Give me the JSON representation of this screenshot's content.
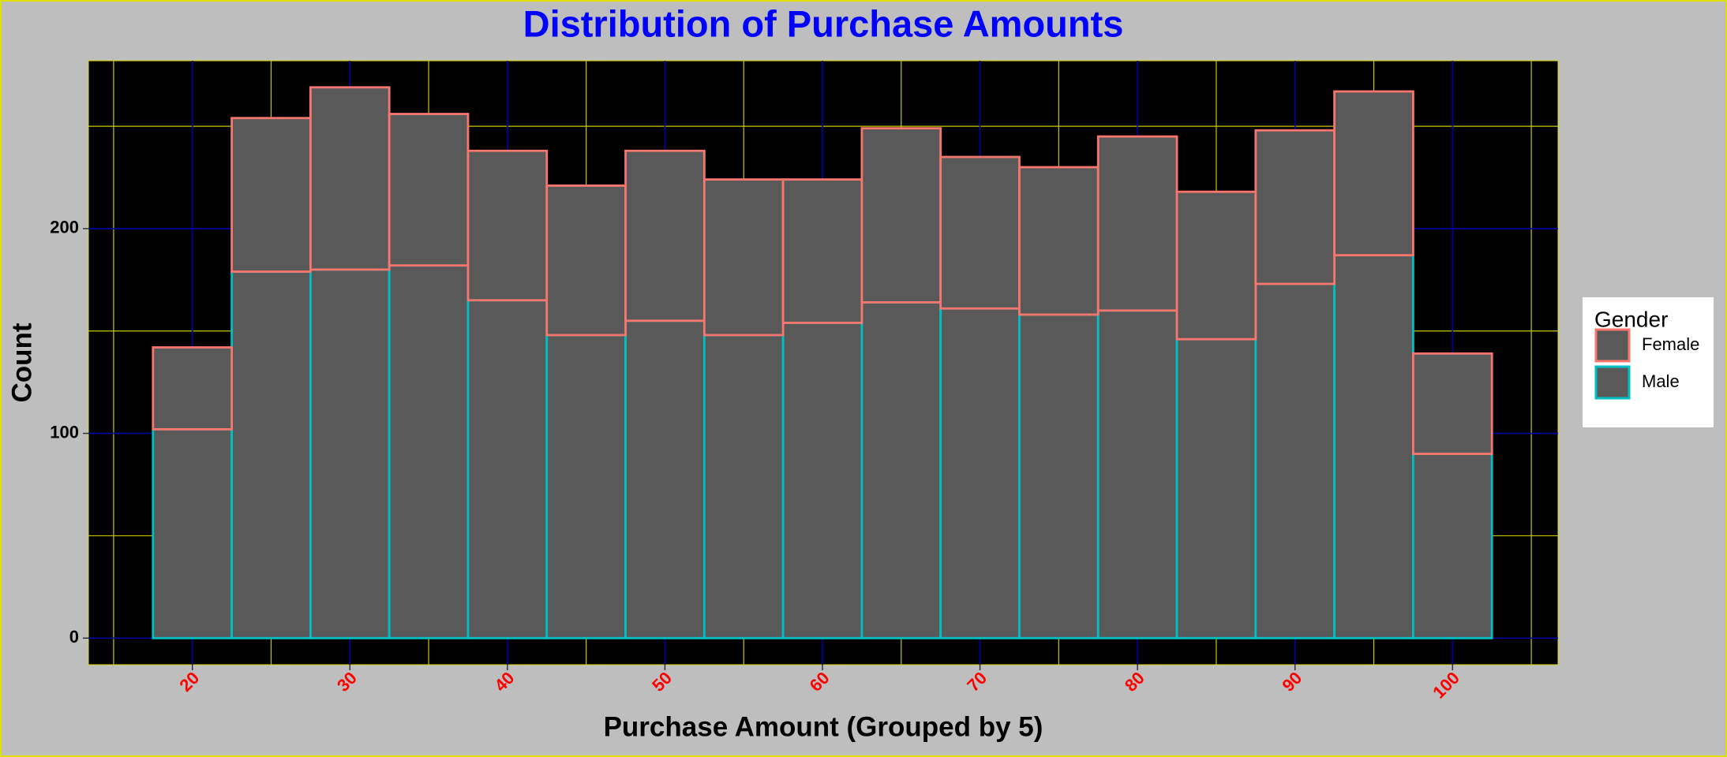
{
  "chart_data": {
    "type": "stacked_histogram",
    "title": "Distribution of Purchase Amounts",
    "x_label": "Purchase Amount (Grouped by 5)",
    "y_label": "Count",
    "bins": [
      17.5,
      22.5,
      27.5,
      32.5,
      37.5,
      42.5,
      47.5,
      52.5,
      57.5,
      62.5,
      67.5,
      72.5,
      77.5,
      82.5,
      87.5,
      92.5,
      97.5,
      102.5
    ],
    "series": [
      {
        "name": "Male",
        "color": "#00bfc4",
        "values": [
          102,
          179,
          180,
          182,
          165,
          148,
          155,
          148,
          154,
          164,
          161,
          158,
          160,
          146,
          173,
          187,
          90
        ]
      },
      {
        "name": "Female",
        "color": "#f8766d",
        "values": [
          40,
          75,
          89,
          74,
          73,
          73,
          83,
          76,
          70,
          85,
          74,
          72,
          85,
          72,
          75,
          80,
          49
        ]
      }
    ],
    "legend_title": "Gender",
    "legend_order": [
      1,
      0
    ],
    "bar_fill": "#595959",
    "xlim": [
      13.4,
      106.7
    ],
    "ylim": [
      -13,
      282
    ],
    "xticks": [
      20,
      30,
      40,
      50,
      60,
      70,
      80,
      90,
      100
    ],
    "yticks": [
      0,
      100,
      200
    ],
    "x_minor_grid": [
      15,
      25,
      35,
      45,
      55,
      65,
      75,
      85,
      95,
      105
    ],
    "y_minor_grid": [
      50,
      150,
      250
    ],
    "grid": true,
    "legend": "right"
  }
}
